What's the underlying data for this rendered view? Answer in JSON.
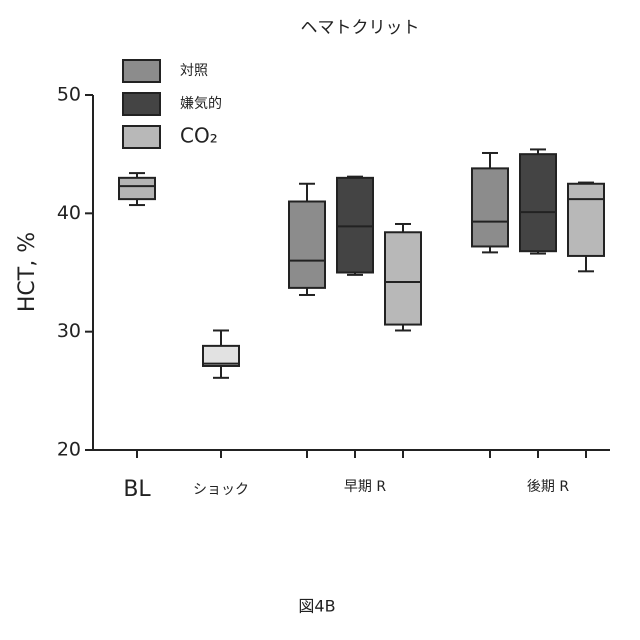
{
  "chart_data": {
    "type": "box",
    "title": "ヘマトクリット",
    "ylabel": "HCT, %",
    "caption": "図4B",
    "categories": [
      "BL",
      "ショック",
      "早期 R",
      "後期 R"
    ],
    "ylim": [
      20,
      50
    ],
    "yticks": [
      20,
      30,
      40,
      50
    ],
    "unlabeled_boxes": {
      "colors": [
        "#b4b4b4",
        "#e2e2e2",
        null,
        null
      ],
      "values": [
        {
          "min": 40.7,
          "q1": 41.2,
          "median": 42.3,
          "q3": 43.0,
          "max": 43.4
        },
        {
          "min": 26.1,
          "q1": 27.1,
          "median": 27.3,
          "q3": 28.8,
          "max": 30.1
        },
        null,
        null
      ]
    },
    "series": [
      {
        "name": "対照",
        "color": "#8c8c8c",
        "values": [
          null,
          null,
          {
            "min": 33.1,
            "q1": 33.7,
            "median": 36.0,
            "q3": 41.0,
            "max": 42.5
          },
          {
            "min": 36.7,
            "q1": 37.2,
            "median": 39.3,
            "q3": 43.8,
            "max": 45.1
          }
        ]
      },
      {
        "name": "嫌気的",
        "color": "#444444",
        "values": [
          null,
          null,
          {
            "min": 34.8,
            "q1": 35.0,
            "median": 38.9,
            "q3": 43.0,
            "max": 43.1
          },
          {
            "min": 36.6,
            "q1": 36.8,
            "median": 40.1,
            "q3": 45.0,
            "max": 45.4
          }
        ]
      },
      {
        "name": "CO₂",
        "color": "#b8b8b8",
        "values": [
          null,
          null,
          {
            "min": 30.1,
            "q1": 30.6,
            "median": 34.2,
            "q3": 38.4,
            "max": 39.1
          },
          {
            "min": 35.1,
            "q1": 36.4,
            "median": 41.2,
            "q3": 42.5,
            "max": 42.6
          }
        ]
      }
    ]
  }
}
